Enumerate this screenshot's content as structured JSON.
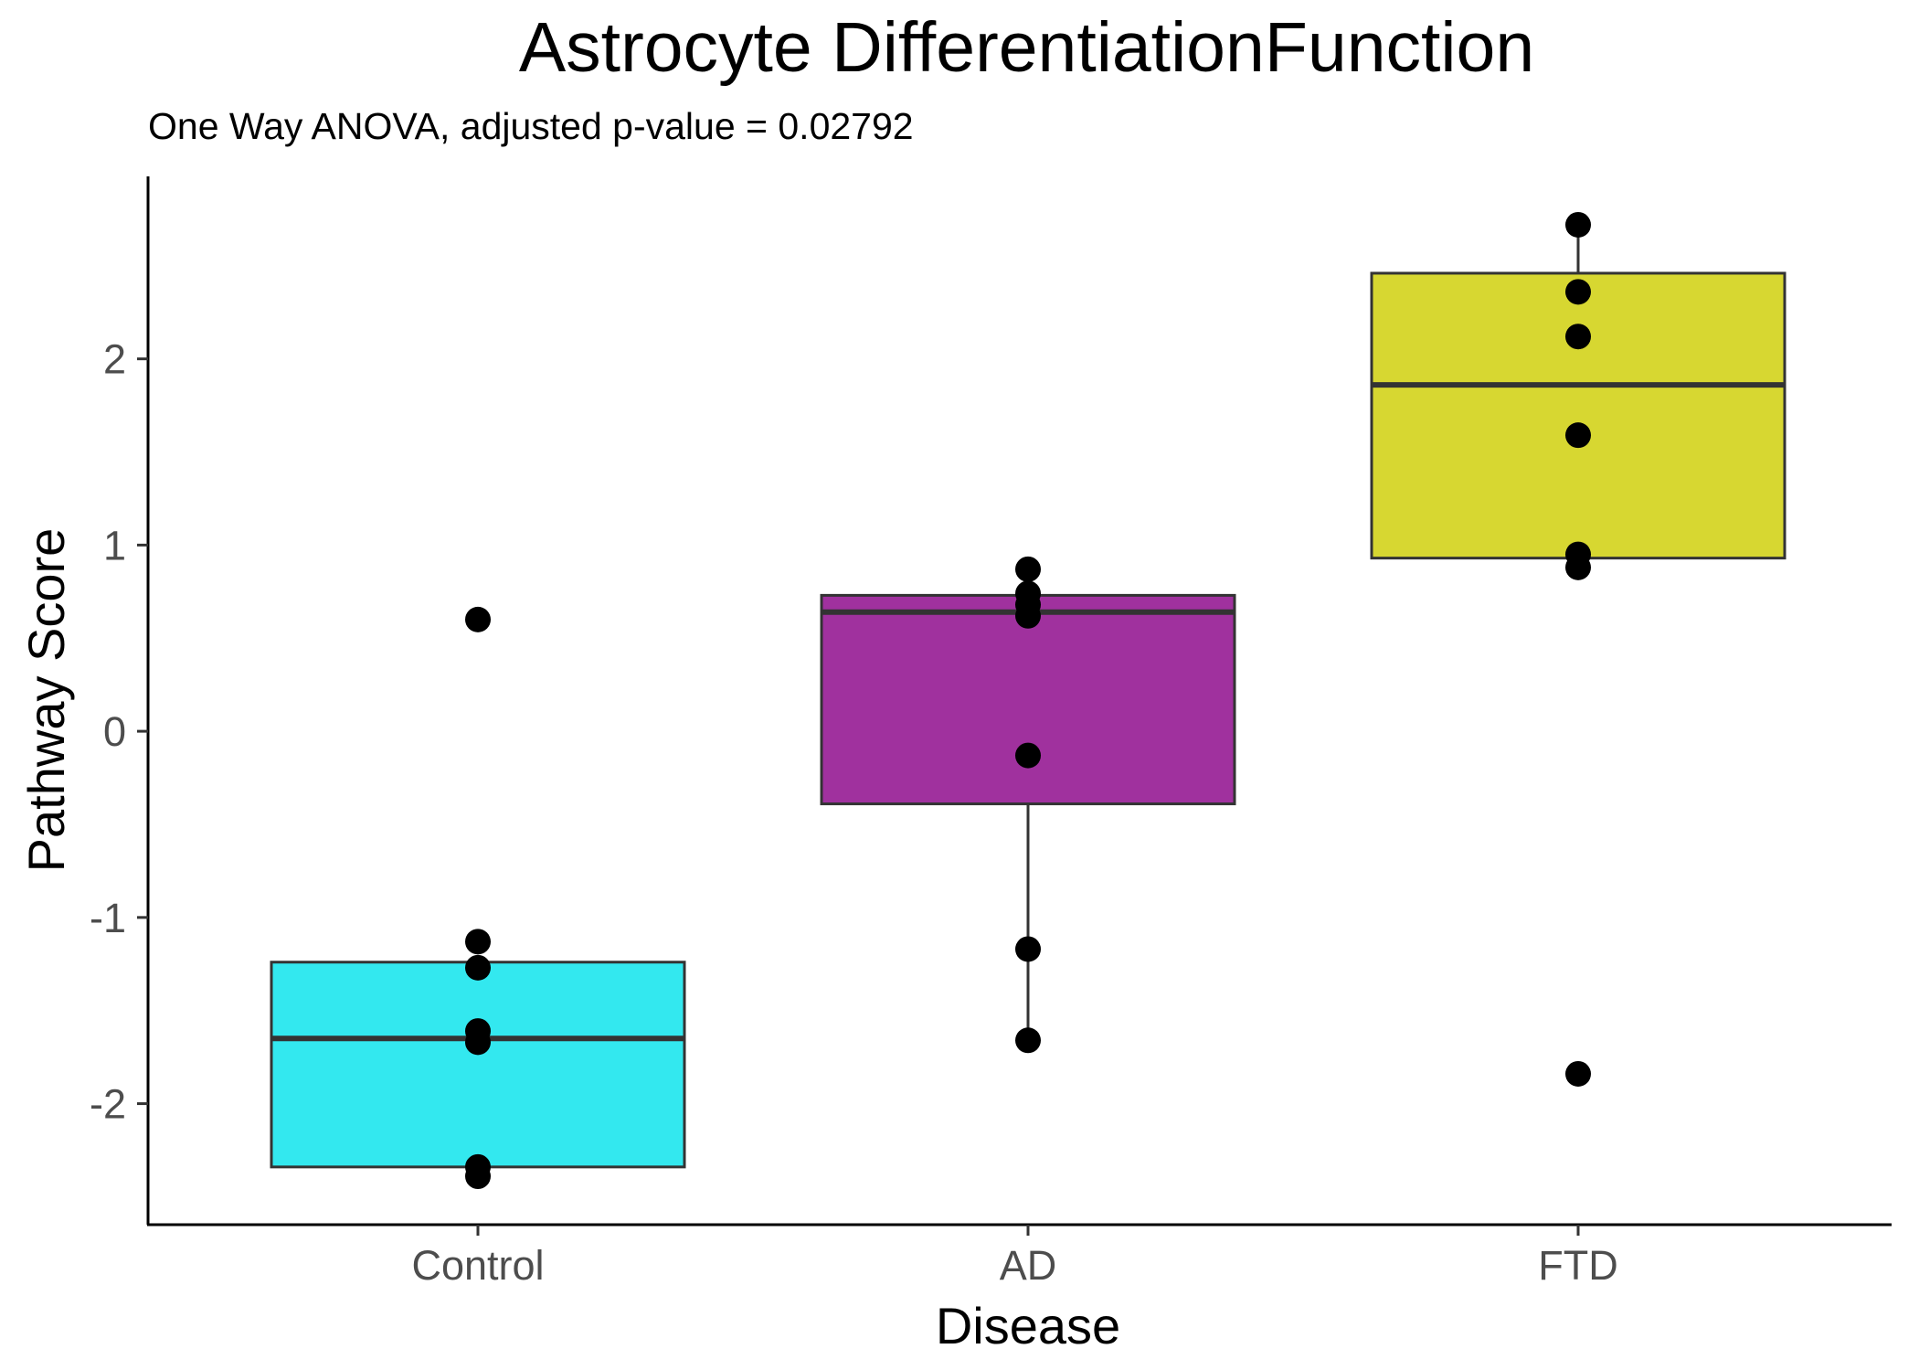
{
  "chart_data": {
    "type": "box",
    "title": "Astrocyte DifferentiationFunction",
    "subtitle": "One Way ANOVA, adjusted p-value = 0.02792",
    "xlabel": "Disease",
    "ylabel": "Pathway Score",
    "ylim": [
      -2.65,
      2.98
    ],
    "yticks": [
      -2,
      -1,
      0,
      1,
      2
    ],
    "categories": [
      "Control",
      "AD",
      "FTD"
    ],
    "grid": false,
    "legend": "none",
    "boxes": [
      {
        "category": "Control",
        "color": "#33e8ef",
        "q1": -2.34,
        "median": -1.65,
        "q3": -1.24,
        "whisker_low": -2.34,
        "whisker_high": -1.24
      },
      {
        "category": "AD",
        "color": "#a0319e",
        "q1": -0.39,
        "median": 0.64,
        "q3": 0.73,
        "whisker_low": -1.66,
        "whisker_high": 0.73
      },
      {
        "category": "FTD",
        "color": "#d7d731",
        "q1": 0.93,
        "median": 1.86,
        "q3": 2.46,
        "whisker_low": 0.93,
        "whisker_high": 2.72
      }
    ],
    "points": [
      {
        "category": "Control",
        "values": [
          0.6,
          -1.13,
          -1.27,
          -1.61,
          -1.67,
          -2.34,
          -2.39
        ]
      },
      {
        "category": "AD",
        "values": [
          0.87,
          0.74,
          0.68,
          0.62,
          -0.13,
          -1.17,
          -1.66
        ]
      },
      {
        "category": "FTD",
        "values": [
          2.72,
          2.36,
          2.12,
          1.59,
          0.95,
          0.88,
          -1.84
        ]
      }
    ]
  }
}
